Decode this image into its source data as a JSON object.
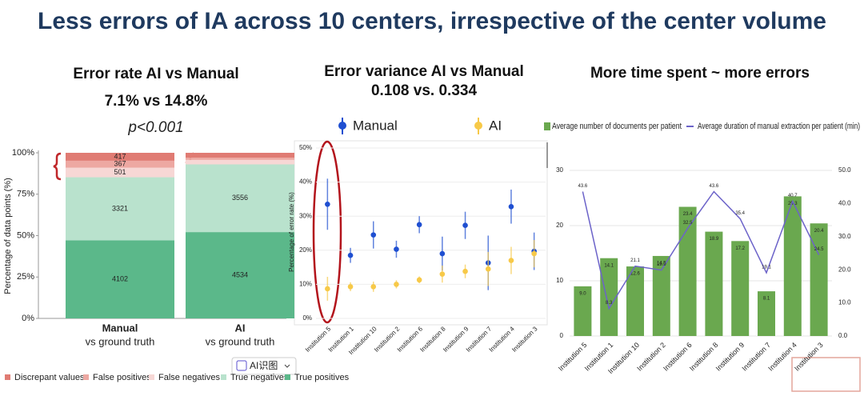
{
  "title": "Less errors of IA across 10 centers, irrespective of the center volume",
  "button": "AI识图",
  "chart_data": [
    {
      "type": "stacked_bar",
      "stacking": "percent",
      "title": "Error rate AI vs Manual",
      "subtitle": "7.1% vs 14.8%",
      "annotation": "p<0.001",
      "categories": [
        "Manual",
        "AI"
      ],
      "category_sublabels": [
        "vs ground truth",
        "vs ground truth"
      ],
      "ylabel": "Percentage of data points (%)",
      "ylim": [
        0,
        100
      ],
      "yticks": [
        {
          "value": 0,
          "label": "0%"
        },
        {
          "value": 25,
          "label": "25%"
        },
        {
          "value": 50,
          "label": "50%"
        },
        {
          "value": 75,
          "label": "75%"
        },
        {
          "value": 100,
          "label": "100%"
        }
      ],
      "legend": "bottom",
      "series": [
        {
          "name": "True positives",
          "color": "#5bb88a",
          "values": [
            4102,
            4534
          ]
        },
        {
          "name": "True negatives",
          "color": "#b9e2cd",
          "values": [
            3321,
            3556
          ]
        },
        {
          "name": "False negatives",
          "color": "#f7d7d5",
          "values": [
            501,
            237
          ]
        },
        {
          "name": "False positives",
          "color": "#eda8a2",
          "values": [
            367,
            114
          ]
        },
        {
          "name": "Discrepant values",
          "color": "#e07b73",
          "values": [
            417,
            258
          ]
        }
      ]
    },
    {
      "type": "errorbar",
      "title": "Error variance AI vs Manual",
      "subtitle": "0.108 vs. 0.334",
      "ylabel": "Percentage of error rate (%)",
      "categories": [
        "Institution 5",
        "Institution 1",
        "Institution 10",
        "Institution 2",
        "Institution 6",
        "Institution 8",
        "Institution 9",
        "Institution 7",
        "Institution 4",
        "Institution 3"
      ],
      "ylim": [
        0,
        52
      ],
      "yticks": [
        {
          "value": 0,
          "label": "0%"
        },
        {
          "value": 10,
          "label": "10%"
        },
        {
          "value": 20,
          "label": "20%"
        },
        {
          "value": 30,
          "label": "30%"
        },
        {
          "value": 40,
          "label": "40%"
        },
        {
          "value": 50,
          "label": "50%"
        }
      ],
      "legend": "top",
      "series": [
        {
          "name": "Manual",
          "color": "#1f4fd1",
          "values": [
            33.5,
            18.5,
            24.5,
            20.3,
            27.5,
            19,
            27.3,
            16.3,
            32.8,
            19.7
          ],
          "errors": [
            7.5,
            2.2,
            4,
            2.5,
            2.5,
            5,
            4,
            8,
            5,
            5.5
          ]
        },
        {
          "name": "AI",
          "color": "#f7c948",
          "values": [
            8.7,
            9.3,
            9.3,
            10,
            11.3,
            13,
            13.8,
            14.5,
            17,
            19
          ],
          "errors": [
            3.5,
            1.3,
            1.5,
            1.2,
            1,
            2.5,
            2,
            5,
            4,
            4
          ]
        }
      ]
    },
    {
      "type": "combo",
      "title": "More time spent  ~ more errors",
      "categories": [
        "Institution 5",
        "Institution 1",
        "Institution 10",
        "Institution 2",
        "Institution 6",
        "Institution 8",
        "Institution 9",
        "Institution 7",
        "Institution 4",
        "Institution 3"
      ],
      "ylim": [
        0,
        30
      ],
      "yticks": [
        0,
        10,
        20,
        30
      ],
      "y2lim": [
        0,
        50
      ],
      "y2ticks": [
        {
          "value": 0,
          "label": "0.0"
        },
        {
          "value": 10,
          "label": "10.0"
        },
        {
          "value": 20,
          "label": "20.0"
        },
        {
          "value": 30,
          "label": "30.0"
        },
        {
          "value": 40,
          "label": "40.0"
        },
        {
          "value": 50,
          "label": "50.0"
        }
      ],
      "grid": true,
      "legend": "top",
      "series": [
        {
          "name": "Average number of documents per patient",
          "type": "bar",
          "color": "#6aa84f",
          "values": [
            9,
            14.1,
            12.6,
            14.5,
            23.4,
            18.9,
            17.2,
            8.1,
            25.3,
            20.4
          ],
          "value_labels": [
            "9.0",
            "14.1",
            "12.6",
            "14.5",
            "23.4",
            "18.9",
            "17.2",
            "8.1",
            "25.3",
            "20.4"
          ]
        },
        {
          "name": "Average duration of manual extraction per patient (min)",
          "type": "line",
          "axis": "y2",
          "color": "#6c63c9",
          "values": [
            43.6,
            8.3,
            21.1,
            19.9,
            32.5,
            43.6,
            35.4,
            19.1,
            40.7,
            24.5
          ]
        }
      ]
    }
  ]
}
